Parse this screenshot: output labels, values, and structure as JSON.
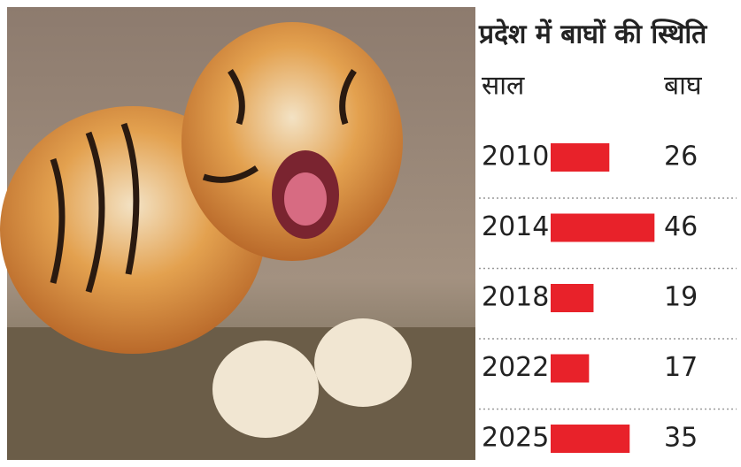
{
  "chart_data": {
    "type": "bar",
    "orientation": "horizontal",
    "title": "प्रदेश में बाघों की स्थिति",
    "category_label": "साल",
    "value_label": "बाघ",
    "categories": [
      "2010",
      "2014",
      "2018",
      "2022",
      "2025"
    ],
    "values": [
      26,
      46,
      19,
      17,
      35
    ],
    "color": "#e8222a"
  }
}
